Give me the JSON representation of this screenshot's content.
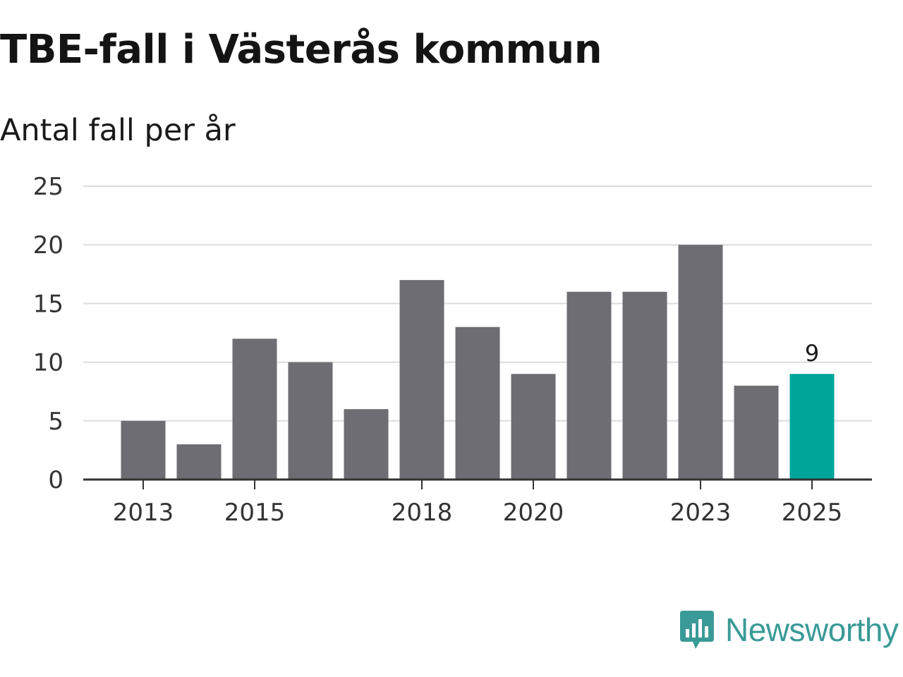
{
  "title": "TBE-fall i Västerås kommun",
  "subtitle": "Antal fall per år",
  "brand": {
    "name": "Newsworthy"
  },
  "colors": {
    "bar": "#6e6d73",
    "highlight": "#00a59a",
    "grid": "#dcdcdc",
    "axis": "#333333",
    "brand": "#3a9a97"
  },
  "chart_data": {
    "type": "bar",
    "title": "TBE-fall i Västerås kommun",
    "subtitle": "Antal fall per år",
    "xlabel": "",
    "ylabel": "",
    "categories": [
      "2013",
      "2014",
      "2015",
      "2016",
      "2017",
      "2018",
      "2019",
      "2020",
      "2021",
      "2022",
      "2023",
      "2024",
      "2025"
    ],
    "values": [
      5,
      3,
      12,
      10,
      6,
      17,
      13,
      9,
      16,
      16,
      20,
      8,
      9
    ],
    "x_tick_labels": [
      "2013",
      "2015",
      "2018",
      "2020",
      "2023",
      "2025"
    ],
    "y_ticks": [
      0,
      5,
      10,
      15,
      20,
      25
    ],
    "ylim": [
      0,
      25
    ],
    "grid": true,
    "highlight_category": "2025",
    "data_labels": [
      {
        "category": "2025",
        "text": "9"
      }
    ]
  }
}
